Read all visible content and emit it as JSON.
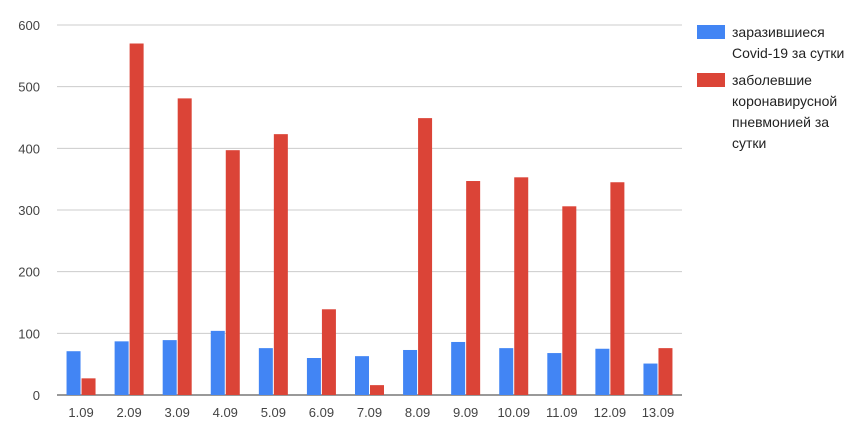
{
  "chart_data": {
    "type": "bar",
    "title": "",
    "xlabel": "",
    "ylabel": "",
    "categories": [
      "1.09",
      "2.09",
      "3.09",
      "4.09",
      "5.09",
      "6.09",
      "7.09",
      "8.09",
      "9.09",
      "10.09",
      "11.09",
      "12.09",
      "13.09"
    ],
    "series": [
      {
        "name": "заразившиеся Covid-19 за сутки",
        "legend_lines": [
          "заразившиеся",
          "Covid-19 за сутки"
        ],
        "color": "#4285f4",
        "values": [
          71,
          87,
          89,
          104,
          76,
          60,
          63,
          73,
          86,
          76,
          68,
          75,
          51
        ]
      },
      {
        "name": "заболевшие коронавирусной пневмонией за сутки",
        "legend_lines": [
          "заболевшие",
          "коронавирусной",
          "пневмонией за",
          "сутки"
        ],
        "color": "#db4437",
        "values": [
          27,
          570,
          481,
          397,
          423,
          139,
          16,
          449,
          347,
          353,
          306,
          345,
          76
        ]
      }
    ],
    "ylim": [
      0,
      600
    ],
    "yticks": [
      0,
      100,
      200,
      300,
      400,
      500,
      600
    ],
    "grid": true,
    "legend_position": "right"
  }
}
